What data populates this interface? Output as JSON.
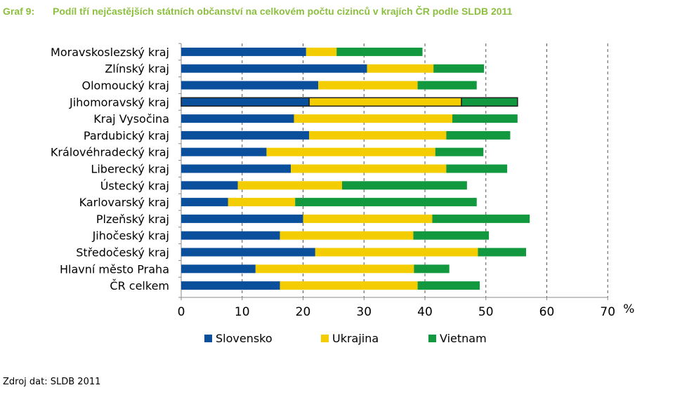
{
  "title": {
    "number": "Graf 9:",
    "text": "Podíl tří nejčastějších státních občanství na celkovém počtu cizinců v krajích ČR podle SLDB 2011"
  },
  "source": "Zdroj dat: SLDB 2011",
  "colors": {
    "Slovensko": "#0a4f9c",
    "Ukrajina": "#f4cd00",
    "Vietnam": "#12993f",
    "title": "#8cbf3f"
  },
  "chart_data": {
    "type": "bar",
    "orientation": "horizontal",
    "stacked": true,
    "categories": [
      "Moravskoslezský kraj",
      "Zlínský kraj",
      "Olomoucký kraj",
      "Jihomoravský kraj",
      "Kraj Vysočina",
      "Pardubický kraj",
      "Královéhradecký kraj",
      "Liberecký kraj",
      "Ústecký kraj",
      "Karlovarský kraj",
      "Plzeňský kraj",
      "Jihočeský kraj",
      "Středočeský kraj",
      "Hlavní město Praha",
      "ČR celkem"
    ],
    "series": [
      {
        "name": "Slovensko",
        "values": [
          20.5,
          30.5,
          22.5,
          21.0,
          18.5,
          21.0,
          14.0,
          18.0,
          9.3,
          7.7,
          20.0,
          16.2,
          22.0,
          12.2,
          16.2
        ]
      },
      {
        "name": "Ukrajina",
        "values": [
          5.0,
          10.9,
          16.3,
          25.0,
          26.0,
          22.5,
          27.7,
          25.5,
          17.1,
          11.0,
          21.2,
          21.9,
          26.7,
          26.0,
          22.6
        ]
      },
      {
        "name": "Vietnam",
        "values": [
          14.1,
          8.3,
          9.7,
          9.2,
          10.7,
          10.5,
          7.9,
          10.0,
          20.5,
          29.8,
          16.0,
          12.4,
          7.9,
          5.8,
          10.2
        ]
      }
    ],
    "highlighted_category": "Jihomoravský kraj",
    "xlim": [
      0,
      70
    ],
    "xticks": [
      0,
      10,
      20,
      30,
      40,
      50,
      60,
      70
    ],
    "x_unit": "%",
    "grid": "vertical dashed",
    "legend_position": "bottom"
  }
}
